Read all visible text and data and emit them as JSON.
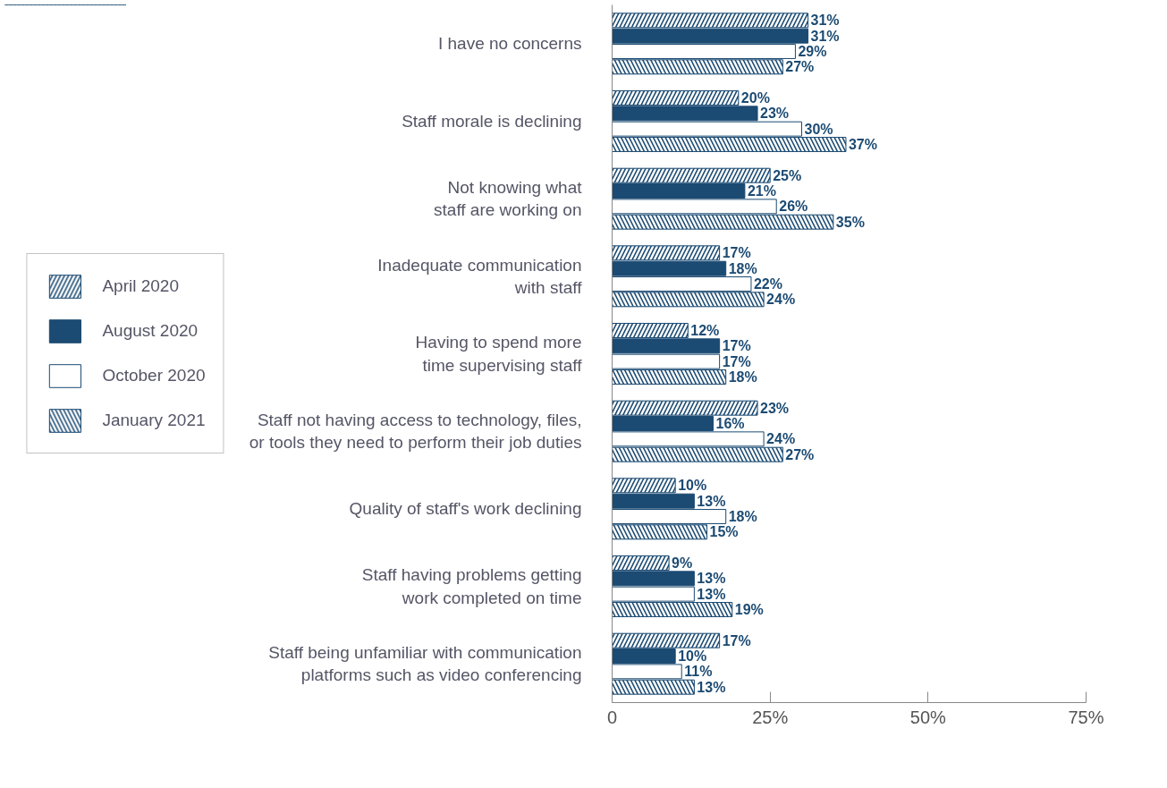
{
  "chart_data": {
    "type": "bar",
    "orientation": "horizontal",
    "categories": [
      "I have no concerns",
      "Staff morale is declining",
      "Not knowing what\nstaff are working on",
      "Inadequate communication\nwith staff",
      "Having to spend more\ntime supervising staff",
      "Staff not having access to technology, files,\nor tools they need to perform their job duties",
      "Quality of staff's work declining",
      "Staff having problems getting\nwork completed on time",
      "Staff being unfamiliar with communication\nplatforms such as video conferencing"
    ],
    "series": [
      {
        "name": "April 2020",
        "color": "#1b4a72",
        "values": [
          31,
          20,
          25,
          17,
          12,
          23,
          10,
          9,
          17
        ],
        "value_labels": [
          "31%",
          "20%",
          "25%",
          "17%",
          "12%",
          "23%",
          "10%",
          "9%",
          "17%"
        ]
      },
      {
        "name": "August 2020",
        "color": "#1b4a72",
        "values": [
          31,
          23,
          21,
          18,
          17,
          16,
          13,
          13,
          10
        ],
        "value_labels": [
          "31%",
          "23%",
          "21%",
          "18%",
          "17%",
          "16%",
          "13%",
          "13%",
          "10%"
        ]
      },
      {
        "name": "October 2020",
        "color": "#ffffff",
        "values": [
          29,
          30,
          26,
          22,
          17,
          24,
          18,
          13,
          11
        ],
        "value_labels": [
          "29%",
          "30%",
          "26%",
          "22%",
          "17%",
          "24%",
          "18%",
          "13%",
          "11%"
        ]
      },
      {
        "name": "January 2021",
        "color": "#1b4a72",
        "values": [
          27,
          37,
          35,
          24,
          18,
          27,
          15,
          19,
          13
        ],
        "value_labels": [
          "27%",
          "37%",
          "35%",
          "24%",
          "18%",
          "27%",
          "15%",
          "19%",
          "13%"
        ]
      }
    ],
    "xlim": [
      0,
      75
    ],
    "xticks": [
      0,
      {
        "value": 25,
        "label": "25%"
      },
      {
        "value": 50,
        "label": "50%"
      },
      {
        "value": 75,
        "label": "75%"
      }
    ],
    "grid": false,
    "legend": "left"
  }
}
